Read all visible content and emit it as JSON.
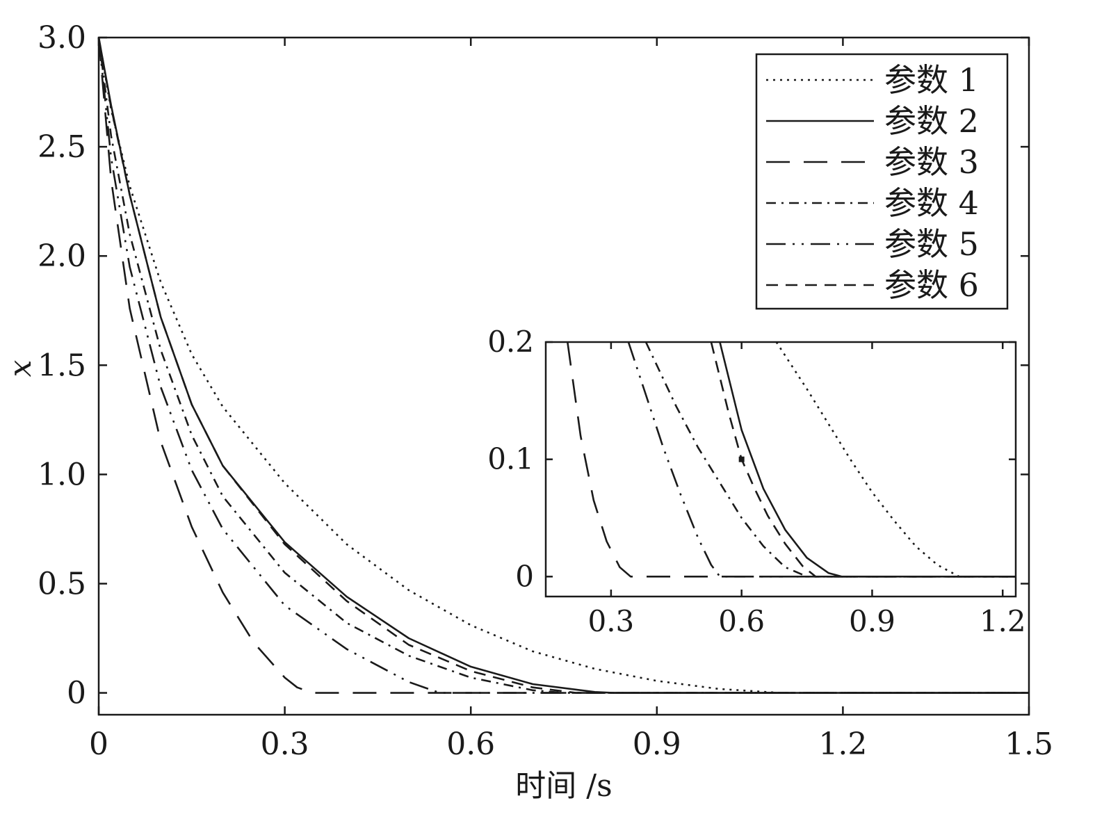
{
  "chart_data": {
    "type": "line",
    "xlabel": "时间 /s",
    "ylabel": "x",
    "xlim": [
      0,
      1.5
    ],
    "ylim": [
      -0.1,
      3.0
    ],
    "xticks": [
      0,
      0.3,
      0.6,
      0.9,
      1.2,
      1.5
    ],
    "xtick_labels": [
      "0",
      "0.3",
      "0.6",
      "0.9",
      "1.2",
      "1.5"
    ],
    "yticks": [
      0,
      0.5,
      1.0,
      1.5,
      2.0,
      2.5,
      3.0
    ],
    "ytick_labels": [
      "0",
      "0.5",
      "1.0",
      "1.5",
      "2.0",
      "2.5",
      "3.0"
    ],
    "grid": false,
    "legend_position": "top-right",
    "series": [
      {
        "name": "参数 1",
        "style": "dotted",
        "x": [
          0,
          0.02,
          0.05,
          0.1,
          0.15,
          0.2,
          0.3,
          0.4,
          0.5,
          0.6,
          0.7,
          0.8,
          0.9,
          1.0,
          1.1,
          1.2,
          1.5
        ],
        "y": [
          3.0,
          2.67,
          2.32,
          1.88,
          1.55,
          1.31,
          0.96,
          0.68,
          0.47,
          0.31,
          0.19,
          0.11,
          0.055,
          0.018,
          0.0,
          0.0,
          0.0
        ]
      },
      {
        "name": "参数 2",
        "style": "solid",
        "x": [
          0,
          0.02,
          0.05,
          0.1,
          0.15,
          0.2,
          0.3,
          0.4,
          0.5,
          0.6,
          0.7,
          0.8,
          0.83,
          0.9,
          1.2,
          1.5
        ],
        "y": [
          3.0,
          2.69,
          2.28,
          1.72,
          1.32,
          1.04,
          0.69,
          0.44,
          0.25,
          0.12,
          0.04,
          0.004,
          0.0,
          0.0,
          0.0,
          0.0
        ]
      },
      {
        "name": "参数 3",
        "style": "long-dash",
        "x": [
          0,
          0.02,
          0.05,
          0.1,
          0.15,
          0.2,
          0.25,
          0.3,
          0.32,
          0.345,
          0.6,
          0.9,
          1.2,
          1.5
        ],
        "y": [
          3.0,
          2.35,
          1.76,
          1.15,
          0.76,
          0.46,
          0.23,
          0.07,
          0.025,
          0.0,
          0.0,
          0.0,
          0.0,
          0.0
        ]
      },
      {
        "name": "参数 4",
        "style": "dash-dot",
        "x": [
          0,
          0.02,
          0.05,
          0.1,
          0.15,
          0.2,
          0.3,
          0.4,
          0.5,
          0.6,
          0.7,
          0.75,
          0.9,
          1.2,
          1.5
        ],
        "y": [
          3.0,
          2.55,
          2.1,
          1.57,
          1.18,
          0.9,
          0.55,
          0.32,
          0.17,
          0.07,
          0.012,
          0.0,
          0.0,
          0.0,
          0.0
        ]
      },
      {
        "name": "参数 5",
        "style": "long-dash-dot-dot",
        "x": [
          0,
          0.02,
          0.05,
          0.1,
          0.15,
          0.2,
          0.3,
          0.4,
          0.5,
          0.55,
          0.6,
          0.9,
          1.2,
          1.5
        ],
        "y": [
          3.0,
          2.45,
          1.95,
          1.4,
          1.02,
          0.75,
          0.4,
          0.2,
          0.05,
          0.0,
          0.0,
          0.0,
          0.0,
          0.0
        ]
      },
      {
        "name": "参数 6",
        "style": "dashed",
        "x": [
          0,
          0.02,
          0.05,
          0.1,
          0.15,
          0.2,
          0.3,
          0.4,
          0.5,
          0.6,
          0.7,
          0.77,
          0.9,
          1.2,
          1.5
        ],
        "y": [
          3.0,
          2.68,
          2.28,
          1.72,
          1.32,
          1.04,
          0.68,
          0.42,
          0.22,
          0.1,
          0.025,
          0.0,
          0.0,
          0.0,
          0.0
        ]
      }
    ],
    "inset": {
      "xlim": [
        0.15,
        1.23
      ],
      "ylim": [
        -0.017,
        0.2
      ],
      "xticks": [
        0.3,
        0.6,
        0.9,
        1.2
      ],
      "xtick_labels": [
        "0.3",
        "0.6",
        "0.9",
        "1.2"
      ],
      "yticks": [
        0,
        0.1,
        0.2
      ],
      "ytick_labels": [
        "0",
        "0.1",
        "0.2"
      ],
      "marker": {
        "x": 0.6,
        "y": 0.1
      },
      "series": [
        {
          "x": [
            0.68,
            0.75,
            0.8,
            0.85,
            0.9,
            0.95,
            1.0,
            1.05,
            1.1,
            1.23
          ],
          "y": [
            0.2,
            0.16,
            0.13,
            0.1,
            0.072,
            0.048,
            0.026,
            0.01,
            0.0,
            0.0
          ]
        },
        {
          "x": [
            0.55,
            0.6,
            0.65,
            0.7,
            0.75,
            0.8,
            0.83,
            1.23
          ],
          "y": [
            0.2,
            0.125,
            0.075,
            0.04,
            0.016,
            0.003,
            0.0,
            0.0
          ]
        },
        {
          "x": [
            0.2,
            0.23,
            0.26,
            0.29,
            0.32,
            0.345,
            1.23
          ],
          "y": [
            0.2,
            0.12,
            0.065,
            0.03,
            0.008,
            0.0,
            0.0
          ]
        },
        {
          "x": [
            0.38,
            0.45,
            0.5,
            0.55,
            0.6,
            0.65,
            0.7,
            0.75,
            1.23
          ],
          "y": [
            0.2,
            0.145,
            0.11,
            0.08,
            0.05,
            0.026,
            0.008,
            0.0,
            0.0
          ]
        },
        {
          "x": [
            0.34,
            0.38,
            0.42,
            0.46,
            0.5,
            0.53,
            0.55,
            1.23
          ],
          "y": [
            0.2,
            0.155,
            0.11,
            0.07,
            0.033,
            0.01,
            0.0,
            0.0
          ]
        },
        {
          "x": [
            0.53,
            0.57,
            0.6,
            0.63,
            0.66,
            0.7,
            0.74,
            0.77,
            1.23
          ],
          "y": [
            0.2,
            0.14,
            0.1,
            0.075,
            0.052,
            0.028,
            0.009,
            0.0,
            0.0
          ]
        }
      ]
    }
  }
}
